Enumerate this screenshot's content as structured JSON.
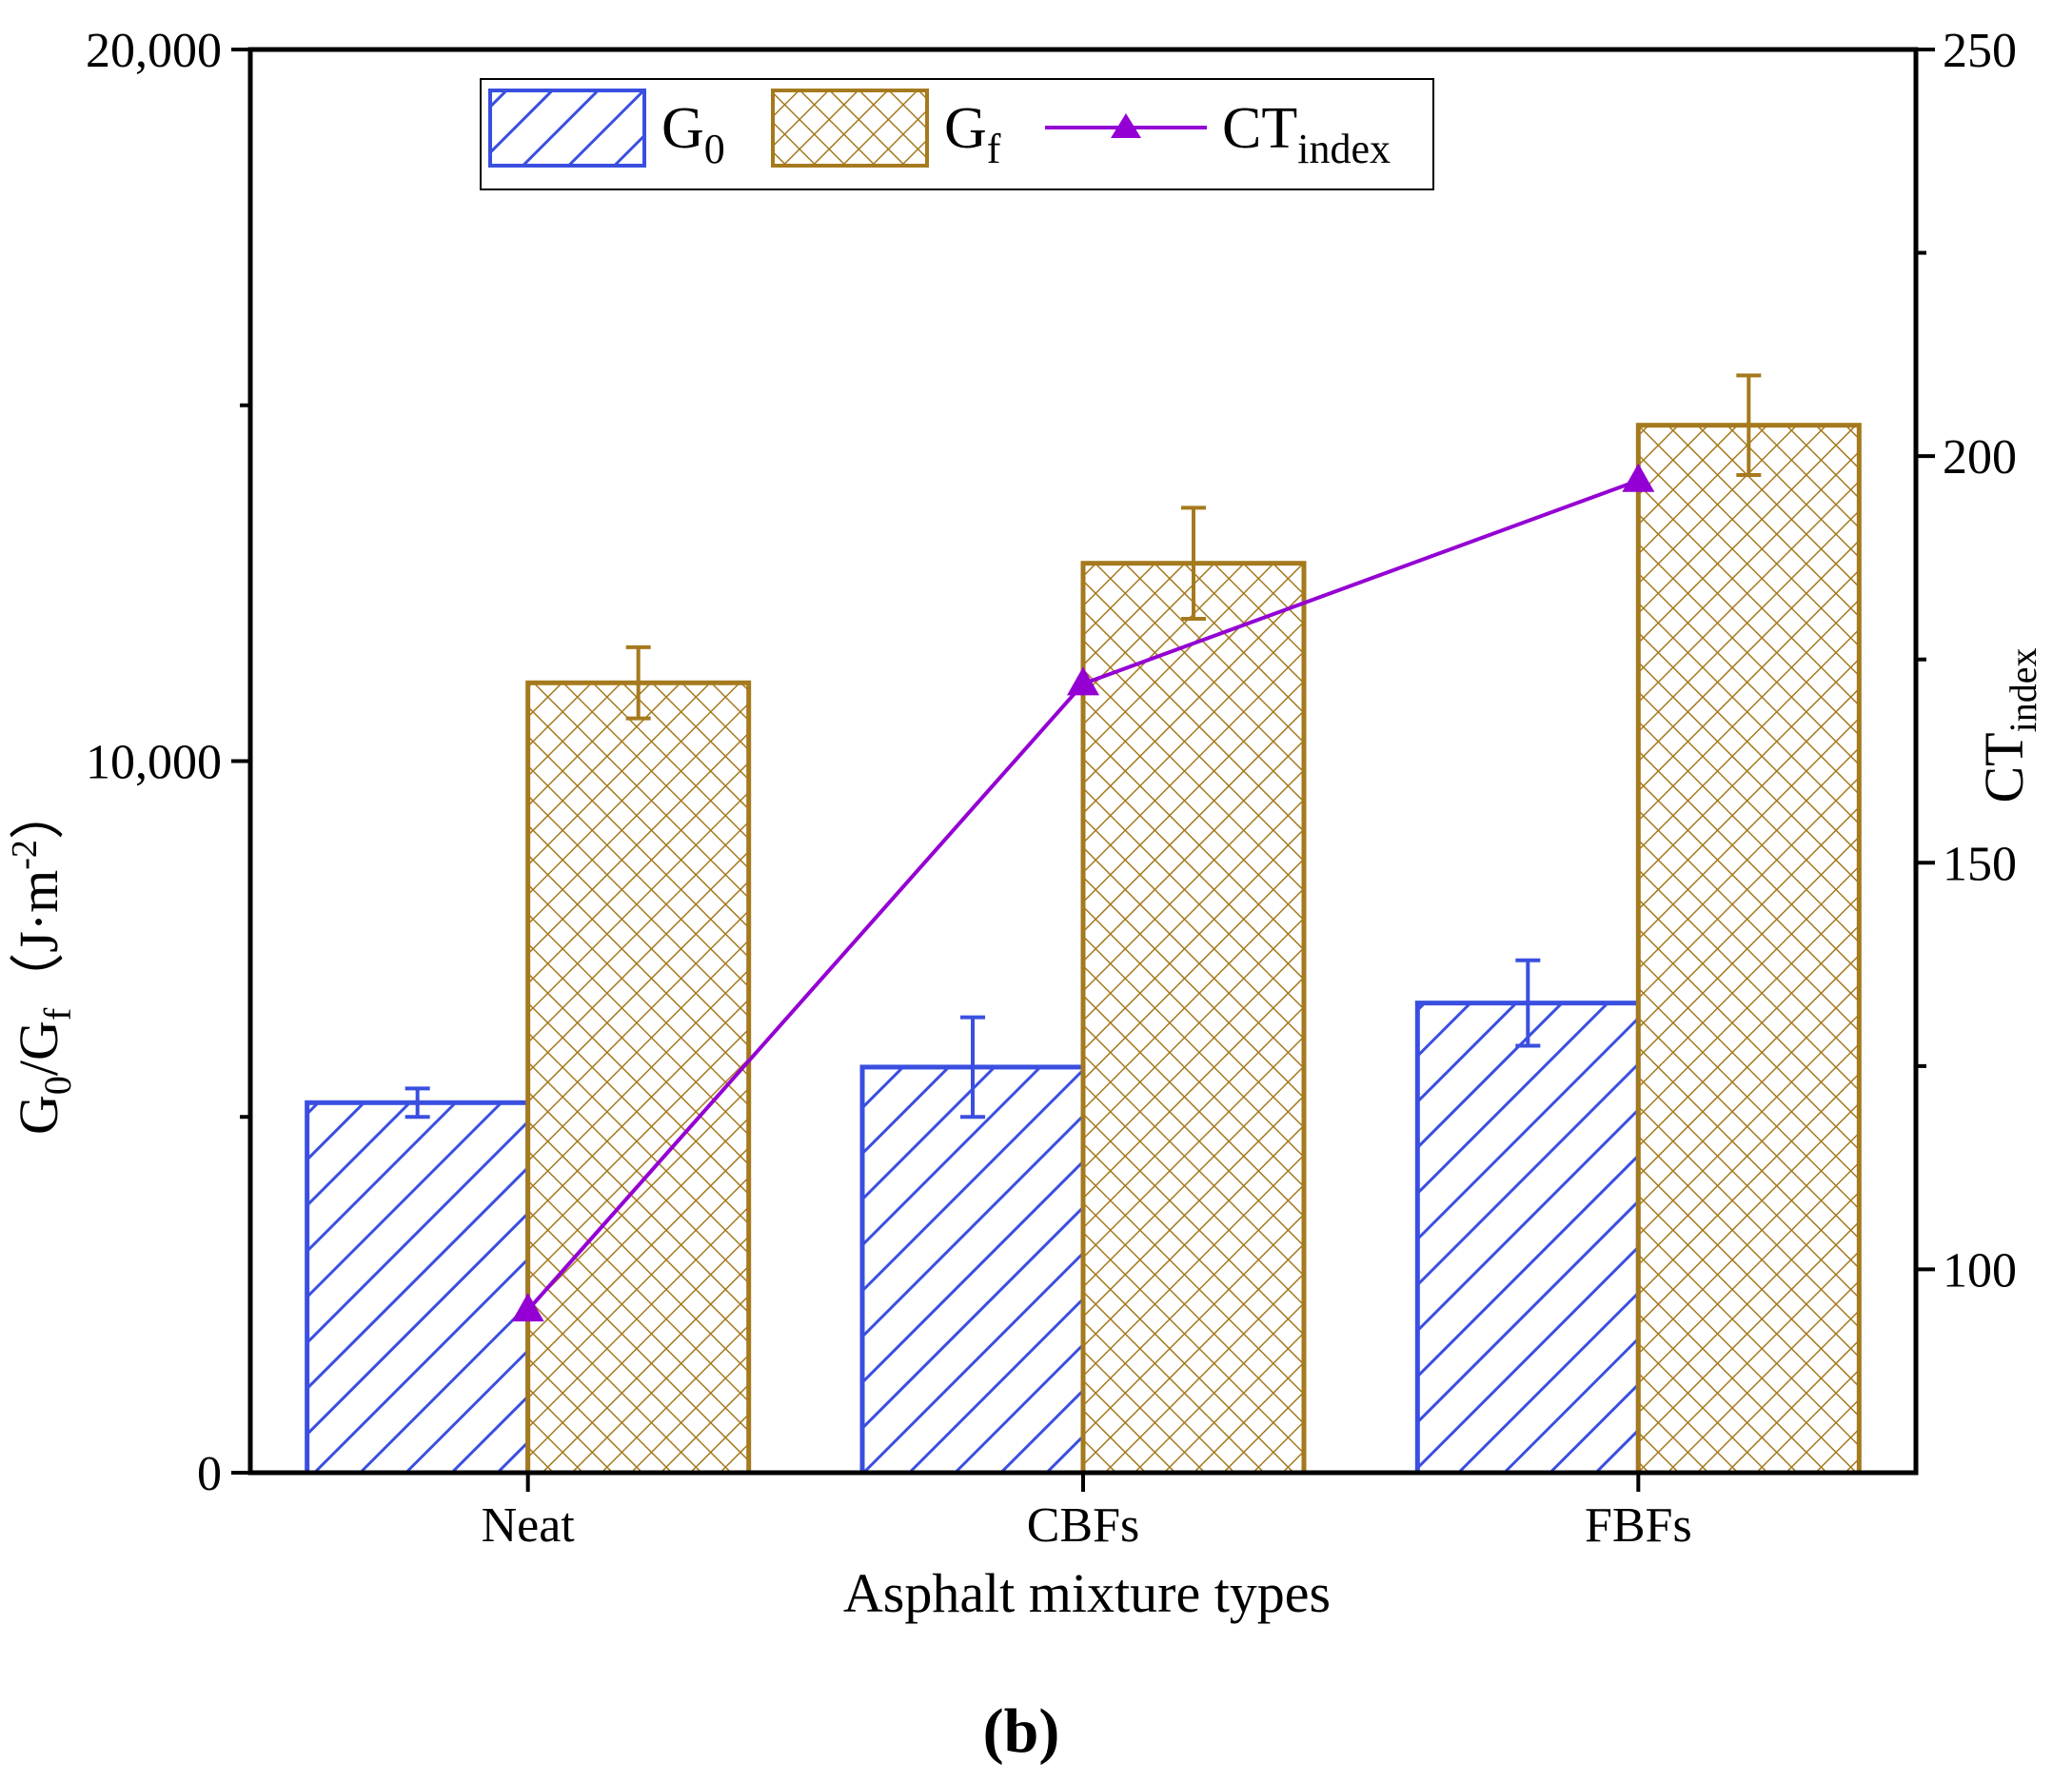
{
  "chart_data": {
    "type": "bar",
    "categories": [
      "Neat",
      "CBFs",
      "FBFs"
    ],
    "series": [
      {
        "name": "G",
        "subscript": "0",
        "axis": "left",
        "kind": "bar",
        "values": [
          5200,
          5700,
          6600
        ],
        "errors": [
          200,
          700,
          600
        ],
        "color": "#3a4fe0"
      },
      {
        "name": "G",
        "subscript": "f",
        "axis": "left",
        "kind": "bar",
        "values": [
          11100,
          12780,
          14720
        ],
        "errors": [
          500,
          780,
          700
        ],
        "color": "#a57a1e"
      },
      {
        "name": "CT",
        "subscript": "index",
        "axis": "right",
        "kind": "line",
        "values": [
          95,
          172,
          197
        ],
        "color": "#9400d3"
      }
    ],
    "xlabel": "Asphalt mixture types",
    "ylabel": {
      "main": "G",
      "sub1": "0",
      "slash": "/G",
      "sub2": "f",
      "units": "（J·m",
      "sup": "-2",
      "close": "）"
    },
    "y2label": {
      "main": "CT",
      "sub": "index"
    },
    "ylim": [
      0,
      20000
    ],
    "yticks": [
      0,
      10000,
      20000
    ],
    "ytick_labels": [
      "0",
      "10,000",
      "20,000"
    ],
    "y2lim": [
      75,
      250
    ],
    "y2ticks": [
      100,
      150,
      200,
      250
    ],
    "y2tick_labels": [
      "100",
      "150",
      "200",
      "250"
    ],
    "legend_position": "top-left",
    "panel_label": "(b)"
  }
}
